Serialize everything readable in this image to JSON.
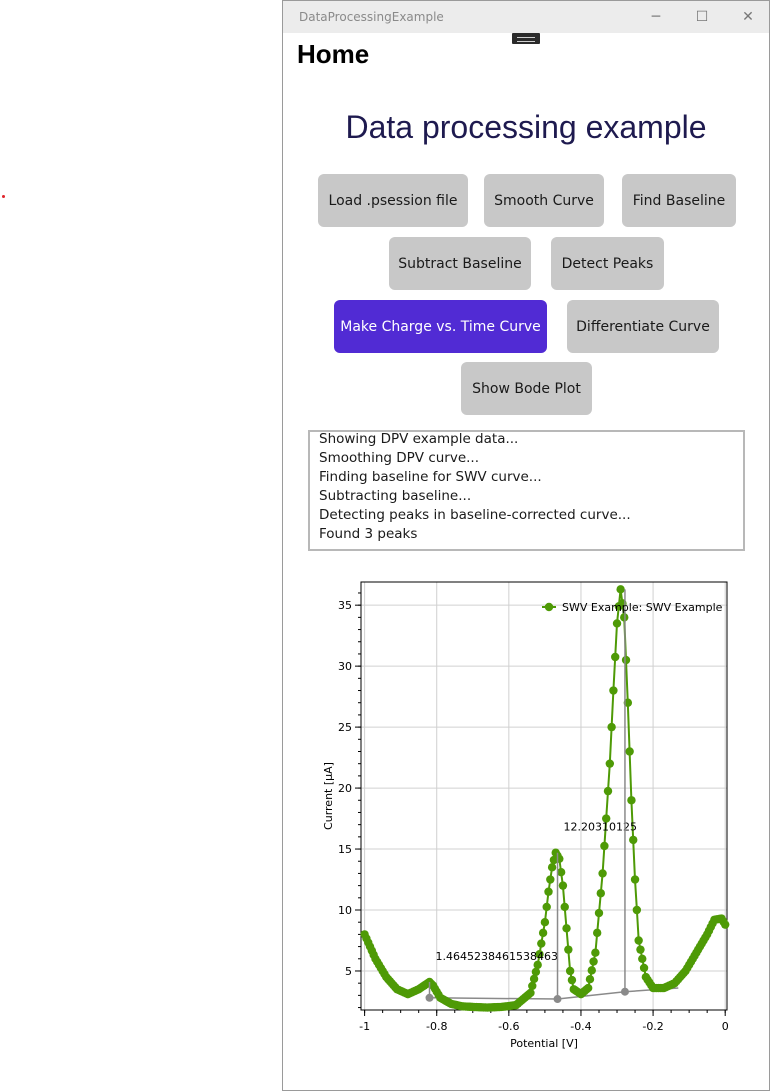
{
  "window": {
    "title": "DataProcessingExample",
    "controls": {
      "minimize": "─",
      "maximize": "☐",
      "close": "✕"
    }
  },
  "page": {
    "title": "Home",
    "heading": "Data processing example"
  },
  "buttons": {
    "load": "Load .psession file",
    "smooth": "Smooth Curve",
    "baseline": "Find Baseline",
    "subtract": "Subtract Baseline",
    "peaks": "Detect Peaks",
    "charge": "Make Charge vs. Time Curve",
    "differentiate": "Differentiate Curve",
    "bode": "Show Bode Plot"
  },
  "log": {
    "lines": [
      "Showing DPV example data...",
      "Smoothing DPV curve...",
      "Finding baseline for SWV curve...",
      "Subtracting baseline...",
      "Detecting peaks in baseline-corrected curve...",
      "Found 3 peaks"
    ]
  },
  "colors": {
    "accent": "#512bd4",
    "series": "#4e9a06",
    "baseline": "#8a8a8a"
  },
  "chart_data": {
    "type": "line",
    "xlabel": "Potential [V]",
    "ylabel": "Current [µA]",
    "xlim": [
      -1.01,
      0.005
    ],
    "ylim": [
      1.8,
      36.9
    ],
    "xticks": [
      -1,
      -0.8,
      -0.6,
      -0.4,
      -0.2,
      0
    ],
    "yticks": [
      5,
      10,
      15,
      20,
      25,
      30,
      35
    ],
    "grid": true,
    "legend": {
      "position": "top-right",
      "entries": [
        "SWV Example: SWV Example"
      ]
    },
    "series": [
      {
        "name": "SWV Example: SWV Example",
        "x": [
          -1.0,
          -0.97,
          -0.94,
          -0.91,
          -0.88,
          -0.85,
          -0.82,
          -0.81,
          -0.79,
          -0.76,
          -0.73,
          -0.7,
          -0.66,
          -0.62,
          -0.58,
          -0.54,
          -0.52,
          -0.5,
          -0.49,
          -0.48,
          -0.47,
          -0.46,
          -0.45,
          -0.44,
          -0.43,
          -0.42,
          -0.4,
          -0.38,
          -0.36,
          -0.34,
          -0.32,
          -0.31,
          -0.3,
          -0.29,
          -0.28,
          -0.27,
          -0.26,
          -0.25,
          -0.24,
          -0.22,
          -0.2,
          -0.17,
          -0.14,
          -0.11,
          -0.08,
          -0.05,
          -0.03,
          -0.01,
          0.0
        ],
        "values": [
          8.0,
          6.0,
          4.5,
          3.5,
          3.1,
          3.5,
          4.1,
          3.8,
          2.8,
          2.3,
          2.1,
          2.05,
          2.0,
          2.05,
          2.2,
          3.2,
          5.5,
          9.0,
          11.5,
          13.5,
          14.7,
          14.2,
          12.0,
          8.5,
          5.0,
          3.5,
          3.1,
          3.6,
          6.5,
          13.0,
          22.0,
          28.0,
          33.5,
          36.3,
          34.0,
          27.0,
          19.0,
          12.5,
          7.5,
          4.5,
          3.6,
          3.6,
          4.0,
          5.0,
          6.5,
          8.0,
          9.2,
          9.3,
          8.8
        ]
      }
    ],
    "baseline_segments": [
      {
        "x": [
          -0.82,
          -0.465
        ],
        "y": [
          2.8,
          2.7
        ]
      },
      {
        "x": [
          -0.465,
          -0.278
        ],
        "y": [
          2.7,
          3.3
        ]
      },
      {
        "x": [
          -0.278,
          -0.13
        ],
        "y": [
          3.3,
          3.6
        ]
      }
    ],
    "peaks": [
      {
        "x": -0.82,
        "top": 4.1,
        "base": 2.8,
        "label": "1.4645238461538463"
      },
      {
        "x": -0.465,
        "top": 14.7,
        "base": 2.7,
        "label": "12.20310125"
      },
      {
        "x": -0.278,
        "top": 36.3,
        "base": 3.3,
        "label": ""
      }
    ]
  }
}
